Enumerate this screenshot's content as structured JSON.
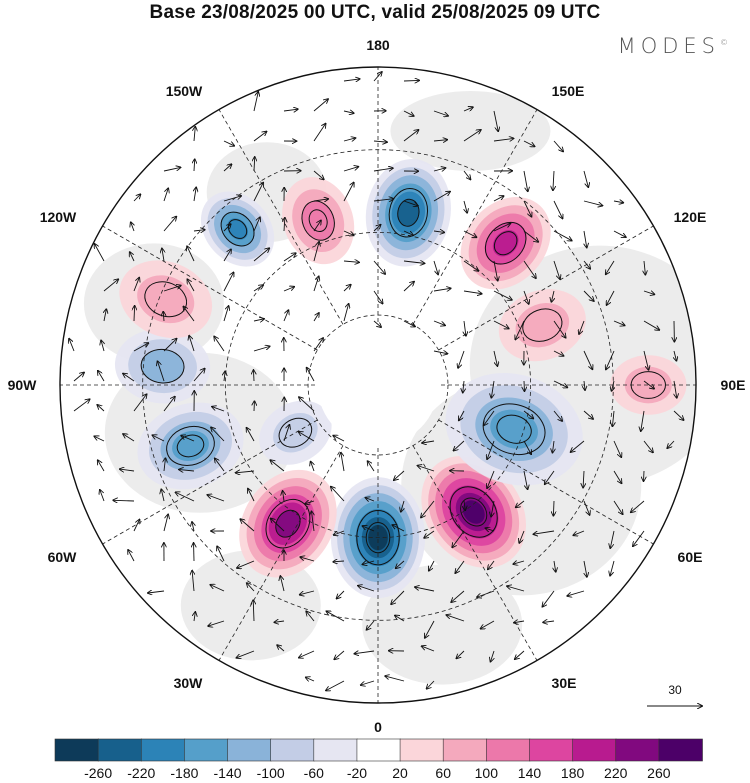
{
  "title": "Base 23/08/2025 00 UTC, valid 25/08/2025 09 UTC",
  "brand": "MODES",
  "brand_mark": "©",
  "longitude_labels": {
    "top": "180",
    "bottom": "0",
    "left": "90W",
    "right": "90E",
    "w150": "150W",
    "e150": "150E",
    "w120": "120W",
    "e120": "120E",
    "w60": "60W",
    "e60": "60E",
    "w30": "30W",
    "e30": "30E"
  },
  "reference_vector": {
    "value": "30"
  },
  "colorbar": {
    "ticks": [
      "-260",
      "-220",
      "-180",
      "-140",
      "-100",
      "-60",
      "-20",
      "20",
      "60",
      "100",
      "140",
      "180",
      "220",
      "260"
    ],
    "colors": [
      "#0d3a59",
      "#17608c",
      "#2c83b7",
      "#559fca",
      "#8ab3d9",
      "#c3cde6",
      "#e6e6f2",
      "#ffffff",
      "#fbd6da",
      "#f4a9bd",
      "#ec78aa",
      "#dd45a0",
      "#b81b8f",
      "#81097f",
      "#4c0068"
    ]
  },
  "anomalies": [
    {
      "lon": 0,
      "r": 0.48,
      "sign": -1,
      "strength": 1.0,
      "size": 0.19
    },
    {
      "lon": 37,
      "r": 0.5,
      "sign": 1,
      "strength": 0.95,
      "size": 0.19
    },
    {
      "lon": -33,
      "r": 0.52,
      "sign": 1,
      "strength": 0.85,
      "size": 0.18
    },
    {
      "lon": 72,
      "r": 0.45,
      "sign": -1,
      "strength": 0.5,
      "size": 0.22
    },
    {
      "lon": -72,
      "r": 0.62,
      "sign": -1,
      "strength": 0.6,
      "size": 0.17
    },
    {
      "lon": -95,
      "r": 0.68,
      "sign": -1,
      "strength": 0.4,
      "size": 0.15
    },
    {
      "lon": -112,
      "r": 0.72,
      "sign": 1,
      "strength": 0.35,
      "size": 0.15
    },
    {
      "lon": -138,
      "r": 0.66,
      "sign": -1,
      "strength": 0.65,
      "size": 0.13
    },
    {
      "lon": -160,
      "r": 0.55,
      "sign": 1,
      "strength": 0.45,
      "size": 0.14
    },
    {
      "lon": 170,
      "r": 0.55,
      "sign": -1,
      "strength": 0.8,
      "size": 0.17
    },
    {
      "lon": 138,
      "r": 0.6,
      "sign": 1,
      "strength": 0.75,
      "size": 0.16
    },
    {
      "lon": 110,
      "r": 0.55,
      "sign": 1,
      "strength": 0.2,
      "size": 0.14
    },
    {
      "lon": -60,
      "r": 0.3,
      "sign": -1,
      "strength": 0.3,
      "size": 0.12
    },
    {
      "lon": 90,
      "r": 0.85,
      "sign": 1,
      "strength": 0.2,
      "size": 0.12
    }
  ]
}
